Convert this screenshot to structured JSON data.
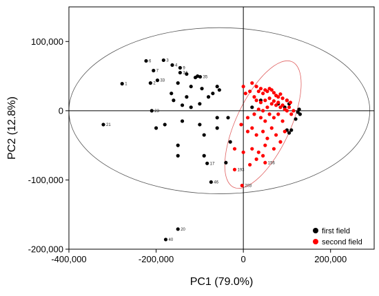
{
  "chart_data": {
    "type": "scatter",
    "title": "",
    "xlabel": "PC1 (79.0%)",
    "ylabel": "PC2 (12.8%)",
    "xlim": [
      -400000,
      300000
    ],
    "ylim": [
      -200000,
      150000
    ],
    "x_ticks": [
      -400000,
      -200000,
      0,
      200000
    ],
    "x_tick_labels": [
      "-400,000",
      "-200,000",
      "0",
      "200,000"
    ],
    "y_ticks": [
      -200000,
      -100000,
      0,
      100000
    ],
    "y_tick_labels": [
      "-200,000",
      "-100,000",
      "0",
      "100,000"
    ],
    "grid": false,
    "legend_position": "bottom-right",
    "colors": {
      "first_field": "#000000",
      "second_field": "#ff0000"
    },
    "series": [
      {
        "name": "first field",
        "color": "#000000",
        "points": [
          {
            "x": -278000,
            "y": 39000,
            "label": "1"
          },
          {
            "x": -213000,
            "y": 40000,
            "label": "2"
          },
          {
            "x": -183000,
            "y": 73000,
            "label": "3"
          },
          {
            "x": -163000,
            "y": 66000,
            "label": "4"
          },
          {
            "x": -223000,
            "y": 72000,
            "label": "6"
          },
          {
            "x": -206000,
            "y": 58000,
            "label": "7"
          },
          {
            "x": -145000,
            "y": 62000,
            "label": "9"
          },
          {
            "x": -321000,
            "y": -20000,
            "label": "21"
          },
          {
            "x": -210000,
            "y": 0,
            "label": "23"
          },
          {
            "x": -197000,
            "y": 44000,
            "label": "33"
          },
          {
            "x": -145000,
            "y": 55000,
            "label": "34"
          },
          {
            "x": -99000,
            "y": 49000,
            "label": "35"
          },
          {
            "x": -83000,
            "y": -76000,
            "label": "17"
          },
          {
            "x": -74000,
            "y": -103000,
            "label": "46"
          },
          {
            "x": -150000,
            "y": -171000,
            "label": "20"
          },
          {
            "x": -178000,
            "y": -186000,
            "label": "40"
          },
          {
            "x": -130000,
            "y": 53000
          },
          {
            "x": -110000,
            "y": 48000
          },
          {
            "x": -105000,
            "y": 50000
          },
          {
            "x": -150000,
            "y": 40000
          },
          {
            "x": -120000,
            "y": 35000
          },
          {
            "x": -60000,
            "y": 35000
          },
          {
            "x": -55000,
            "y": 30000
          },
          {
            "x": -70000,
            "y": 25000
          },
          {
            "x": -95000,
            "y": 32000
          },
          {
            "x": -165000,
            "y": 25000
          },
          {
            "x": -130000,
            "y": 20000
          },
          {
            "x": -160000,
            "y": 15000
          },
          {
            "x": -140000,
            "y": 8000
          },
          {
            "x": -120000,
            "y": 5000
          },
          {
            "x": -100000,
            "y": 10000
          },
          {
            "x": -80000,
            "y": 20000
          },
          {
            "x": -140000,
            "y": -15000
          },
          {
            "x": -200000,
            "y": -25000
          },
          {
            "x": -180000,
            "y": -20000
          },
          {
            "x": -100000,
            "y": -20000
          },
          {
            "x": -60000,
            "y": -25000
          },
          {
            "x": -150000,
            "y": -50000
          },
          {
            "x": -90000,
            "y": -35000
          },
          {
            "x": -150000,
            "y": -65000
          },
          {
            "x": -90000,
            "y": -65000
          },
          {
            "x": -60000,
            "y": -10000
          },
          {
            "x": -35000,
            "y": -10000
          },
          {
            "x": -30000,
            "y": -45000
          },
          {
            "x": -40000,
            "y": -75000
          },
          {
            "x": 100000,
            "y": 15000
          },
          {
            "x": 105000,
            "y": 10000
          },
          {
            "x": 95000,
            "y": 5000
          },
          {
            "x": 100000,
            "y": -28000
          },
          {
            "x": 105000,
            "y": -32000
          },
          {
            "x": 110000,
            "y": -28000
          },
          {
            "x": 125000,
            "y": -2000
          },
          {
            "x": 128000,
            "y": 2000
          },
          {
            "x": 130000,
            "y": -5000
          },
          {
            "x": 120000,
            "y": -12000
          },
          {
            "x": 20000,
            "y": 5000
          },
          {
            "x": 40000,
            "y": 15000
          },
          {
            "x": 80000,
            "y": 10000
          }
        ]
      },
      {
        "name": "second field",
        "color": "#ff0000",
        "points": [
          {
            "x": -20000,
            "y": -85000,
            "label": "193"
          },
          {
            "x": -3000,
            "y": -108000,
            "label": "203"
          },
          {
            "x": 50000,
            "y": -75000,
            "label": "156"
          },
          {
            "x": 20000,
            "y": 40000
          },
          {
            "x": 30000,
            "y": 35000
          },
          {
            "x": 35000,
            "y": 28000
          },
          {
            "x": 40000,
            "y": 32000
          },
          {
            "x": 45000,
            "y": 25000
          },
          {
            "x": 50000,
            "y": 30000
          },
          {
            "x": 55000,
            "y": 28000
          },
          {
            "x": 60000,
            "y": 32000
          },
          {
            "x": 65000,
            "y": 30000
          },
          {
            "x": 70000,
            "y": 26000
          },
          {
            "x": 75000,
            "y": 22000
          },
          {
            "x": 80000,
            "y": 20000
          },
          {
            "x": 85000,
            "y": 24000
          },
          {
            "x": 90000,
            "y": 18000
          },
          {
            "x": 25000,
            "y": 20000
          },
          {
            "x": 30000,
            "y": 15000
          },
          {
            "x": 40000,
            "y": 12000
          },
          {
            "x": 50000,
            "y": 15000
          },
          {
            "x": 60000,
            "y": 18000
          },
          {
            "x": 65000,
            "y": 10000
          },
          {
            "x": 70000,
            "y": 14000
          },
          {
            "x": 75000,
            "y": 8000
          },
          {
            "x": 80000,
            "y": 12000
          },
          {
            "x": 85000,
            "y": 5000
          },
          {
            "x": 90000,
            "y": 8000
          },
          {
            "x": 95000,
            "y": 2000
          },
          {
            "x": 100000,
            "y": 0
          },
          {
            "x": 105000,
            "y": 5000
          },
          {
            "x": 110000,
            "y": -5000
          },
          {
            "x": 115000,
            "y": 0
          },
          {
            "x": 55000,
            "y": 5000
          },
          {
            "x": 45000,
            "y": 0
          },
          {
            "x": 35000,
            "y": 2000
          },
          {
            "x": 25000,
            "y": -5000
          },
          {
            "x": 40000,
            "y": -10000
          },
          {
            "x": 50000,
            "y": -15000
          },
          {
            "x": 60000,
            "y": -5000
          },
          {
            "x": 70000,
            "y": -10000
          },
          {
            "x": 80000,
            "y": -5000
          },
          {
            "x": 90000,
            "y": -15000
          },
          {
            "x": 10000,
            "y": -10000
          },
          {
            "x": 5000,
            "y": 25000
          },
          {
            "x": 0,
            "y": 35000
          },
          {
            "x": 15000,
            "y": 28000
          },
          {
            "x": -5000,
            "y": -20000
          },
          {
            "x": 10000,
            "y": -30000
          },
          {
            "x": 20000,
            "y": -25000
          },
          {
            "x": 30000,
            "y": -35000
          },
          {
            "x": 45000,
            "y": -30000
          },
          {
            "x": 55000,
            "y": -40000
          },
          {
            "x": 65000,
            "y": -25000
          },
          {
            "x": 75000,
            "y": -35000
          },
          {
            "x": 85000,
            "y": -45000
          },
          {
            "x": 95000,
            "y": -30000
          },
          {
            "x": 20000,
            "y": -55000
          },
          {
            "x": 35000,
            "y": -60000
          },
          {
            "x": 50000,
            "y": -50000
          },
          {
            "x": -20000,
            "y": -55000
          },
          {
            "x": 0,
            "y": -60000
          },
          {
            "x": 15000,
            "y": -78000
          },
          {
            "x": 30000,
            "y": -70000
          },
          {
            "x": 45000,
            "y": -65000
          },
          {
            "x": 70000,
            "y": -55000
          },
          {
            "x": 100000,
            "y": 15000
          },
          {
            "x": 108000,
            "y": 12000
          }
        ]
      }
    ],
    "ellipses": [
      {
        "name": "all-samples",
        "color": "#555555",
        "cx": -55000,
        "cy": 0,
        "rx": 345000,
        "ry": 120000,
        "rotation_deg": 0
      },
      {
        "name": "second-field",
        "color": "#e06060",
        "cx": 45000,
        "cy": -20000,
        "rx": 62000,
        "ry": 100000,
        "rotation_deg": 25
      }
    ]
  }
}
